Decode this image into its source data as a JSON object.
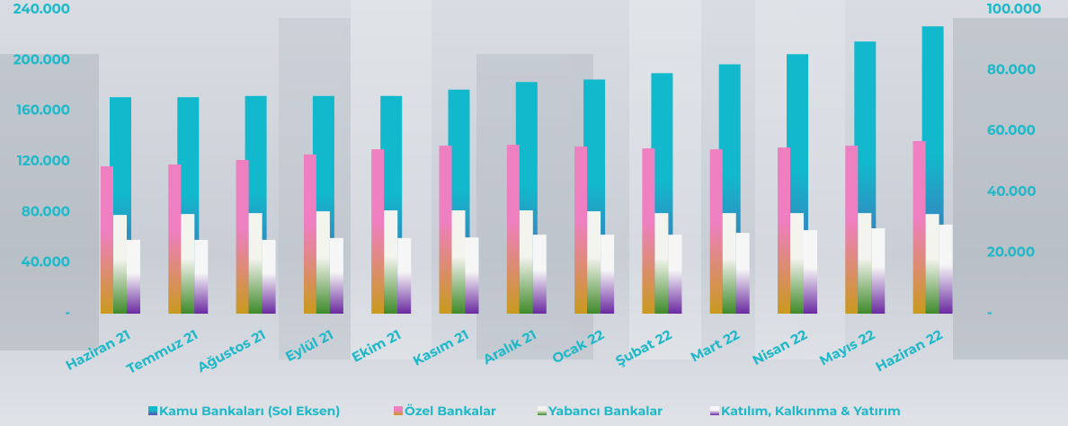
{
  "chart_data": {
    "type": "bar",
    "categories": [
      "Haziran 21",
      "Temmuz 21",
      "Ağustos 21",
      "Eylül 21",
      "Ekim 21",
      "Kasım 21",
      "Aralık 21",
      "Ocak 22",
      "Şubat 22",
      "Mart 22",
      "Nisan 22",
      "Mayıs 22",
      "Haziran 22"
    ],
    "series": [
      {
        "name": "Kamu Bankaları (Sol Eksen)",
        "color": "#12b8cc",
        "axis": "y",
        "values": [
          171000,
          171000,
          172000,
          172000,
          172000,
          177000,
          183000,
          185000,
          190000,
          197000,
          205000,
          215000,
          227000
        ]
      },
      {
        "name": "Özel Bankalar",
        "color": "#ee7fc0",
        "axis": "y2",
        "values": [
          48500,
          49100,
          50600,
          52400,
          54100,
          55300,
          55600,
          55000,
          54400,
          54100,
          54700,
          55300,
          56800
        ]
      },
      {
        "name": "Yabancı Bankalar",
        "color": "#f4f4ee",
        "axis": "y2",
        "values": [
          32500,
          32800,
          33100,
          33700,
          34000,
          34000,
          34000,
          33700,
          33100,
          33100,
          33100,
          33100,
          32800
        ]
      },
      {
        "name": "Katılım, Kalkınma & Yatırım",
        "color": "#f6f6f6",
        "axis": "y2",
        "values": [
          24300,
          24300,
          24300,
          24900,
          24900,
          25100,
          26000,
          26000,
          26000,
          26600,
          27500,
          28100,
          29300
        ]
      }
    ],
    "ylim": [
      0,
      240000
    ],
    "yticks": [
      {
        "value": 0,
        "label": "-"
      },
      {
        "value": 40000,
        "label": "40.000"
      },
      {
        "value": 80000,
        "label": "80.000"
      },
      {
        "value": 120000,
        "label": "120.000"
      },
      {
        "value": 160000,
        "label": "160.000"
      },
      {
        "value": 200000,
        "label": "200.000"
      },
      {
        "value": 240000,
        "label": "240.000"
      }
    ],
    "y2lim": [
      0,
      100000
    ],
    "y2ticks": [
      {
        "value": 0,
        "label": "-"
      },
      {
        "value": 20000,
        "label": "20.000"
      },
      {
        "value": 40000,
        "label": "40.000"
      },
      {
        "value": 60000,
        "label": "60.000"
      },
      {
        "value": 80000,
        "label": "80.000"
      },
      {
        "value": 100000,
        "label": "100.000"
      }
    ],
    "grid": false,
    "legend": "bottom"
  }
}
